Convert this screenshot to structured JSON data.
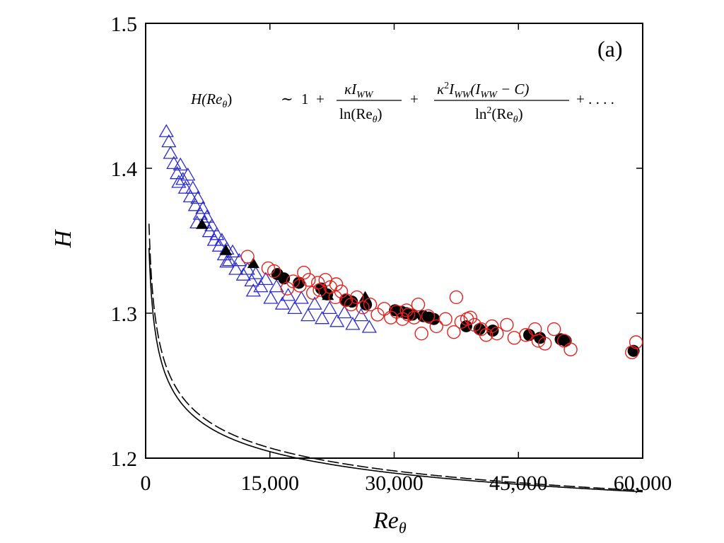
{
  "chart_data": {
    "type": "scatter",
    "panel_label": "(a)",
    "xlabel": "Re",
    "xlabel_sub": "θ",
    "ylabel": "H",
    "xlim": [
      0,
      60000
    ],
    "ylim": [
      1.2,
      1.5
    ],
    "x_ticks": [
      0,
      15000,
      30000,
      45000,
      60000
    ],
    "x_tick_labels": [
      "0",
      "15,000",
      "30,000",
      "45,000",
      "60,000"
    ],
    "y_ticks": [
      1.2,
      1.3,
      1.4,
      1.5
    ],
    "y_tick_labels": [
      "1.2",
      "1.3",
      "1.4",
      "1.5"
    ],
    "grid": false,
    "annotation": {
      "lhs": "H(Re",
      "lhs_sub": "θ",
      "lhs_close": ")",
      "sim": "∼",
      "one": "1",
      "plus": "+",
      "frac1_num": "κI",
      "frac1_num_sub": "WW",
      "frac1_den": "ln(Re",
      "frac1_den_sub": "θ",
      "frac1_den_close": ")",
      "frac2_num_a": "κ",
      "frac2_num_sup": "2",
      "frac2_num_b": "I",
      "frac2_num_sub": "WW",
      "frac2_num_c": "(I",
      "frac2_num_sub2": "WW",
      "frac2_num_d": " − C)",
      "frac2_den_a": "ln",
      "frac2_den_sup": "2",
      "frac2_den_b": "(Re",
      "frac2_den_sub": "θ",
      "frac2_den_close": ")",
      "tail": "+ . . . ."
    },
    "colors": {
      "triangles_open": "#2b2bd6",
      "circles_open": "#e8201c",
      "filled": "#000000",
      "axes": "#000000"
    },
    "series": [
      {
        "marker": "open-triangle",
        "color": "#2b2bd6",
        "points": [
          [
            2500,
            1.425
          ],
          [
            2800,
            1.418
          ],
          [
            3000,
            1.41
          ],
          [
            3400,
            1.403
          ],
          [
            3800,
            1.396
          ],
          [
            4200,
            1.402
          ],
          [
            4500,
            1.392
          ],
          [
            4800,
            1.386
          ],
          [
            5100,
            1.395
          ],
          [
            5400,
            1.38
          ],
          [
            5700,
            1.386
          ],
          [
            6000,
            1.374
          ],
          [
            6300,
            1.379
          ],
          [
            6600,
            1.368
          ],
          [
            6900,
            1.372
          ],
          [
            7100,
            1.362
          ],
          [
            7400,
            1.366
          ],
          [
            7700,
            1.356
          ],
          [
            8000,
            1.36
          ],
          [
            8300,
            1.35
          ],
          [
            8600,
            1.354
          ],
          [
            8900,
            1.346
          ],
          [
            9200,
            1.35
          ],
          [
            9500,
            1.34
          ],
          [
            9800,
            1.344
          ],
          [
            10100,
            1.336
          ],
          [
            10500,
            1.342
          ],
          [
            10900,
            1.33
          ],
          [
            11300,
            1.336
          ],
          [
            11800,
            1.326
          ],
          [
            12300,
            1.33
          ],
          [
            12800,
            1.322
          ],
          [
            13300,
            1.327
          ],
          [
            13900,
            1.318
          ],
          [
            14500,
            1.323
          ],
          [
            15100,
            1.31
          ],
          [
            15800,
            1.318
          ],
          [
            16500,
            1.306
          ],
          [
            17200,
            1.312
          ],
          [
            18000,
            1.303
          ],
          [
            18800,
            1.31
          ],
          [
            19600,
            1.298
          ],
          [
            20400,
            1.306
          ],
          [
            21300,
            1.296
          ],
          [
            22200,
            1.303
          ],
          [
            23100,
            1.294
          ],
          [
            24000,
            1.3
          ],
          [
            25000,
            1.292
          ],
          [
            26000,
            1.298
          ],
          [
            27000,
            1.29
          ],
          [
            4000,
            1.39
          ],
          [
            6200,
            1.362
          ],
          [
            9800,
            1.335
          ],
          [
            13000,
            1.315
          ]
        ]
      },
      {
        "marker": "filled-triangle",
        "color": "#000000",
        "points": [
          [
            6800,
            1.361
          ],
          [
            9700,
            1.343
          ],
          [
            13000,
            1.334
          ],
          [
            22000,
            1.312
          ],
          [
            26500,
            1.311
          ]
        ]
      },
      {
        "marker": "open-circle",
        "color": "#e8201c",
        "points": [
          [
            12300,
            1.339
          ],
          [
            14800,
            1.331
          ],
          [
            15500,
            1.329
          ],
          [
            17100,
            1.317
          ],
          [
            17800,
            1.322
          ],
          [
            18600,
            1.319
          ],
          [
            19100,
            1.328
          ],
          [
            19700,
            1.323
          ],
          [
            20200,
            1.314
          ],
          [
            21000,
            1.316
          ],
          [
            21700,
            1.323
          ],
          [
            22300,
            1.318
          ],
          [
            22900,
            1.311
          ],
          [
            23600,
            1.315
          ],
          [
            24200,
            1.309
          ],
          [
            24800,
            1.306
          ],
          [
            25500,
            1.311
          ],
          [
            26200,
            1.304
          ],
          [
            27100,
            1.306
          ],
          [
            28000,
            1.299
          ],
          [
            28800,
            1.303
          ],
          [
            29600,
            1.297
          ],
          [
            30300,
            1.301
          ],
          [
            31000,
            1.296
          ],
          [
            31700,
            1.299
          ],
          [
            32400,
            1.297
          ],
          [
            32900,
            1.306
          ],
          [
            33300,
            1.286
          ],
          [
            34100,
            1.298
          ],
          [
            35100,
            1.291
          ],
          [
            36200,
            1.296
          ],
          [
            37200,
            1.287
          ],
          [
            37500,
            1.311
          ],
          [
            38100,
            1.294
          ],
          [
            38800,
            1.296
          ],
          [
            39700,
            1.292
          ],
          [
            40500,
            1.289
          ],
          [
            41100,
            1.285
          ],
          [
            41800,
            1.291
          ],
          [
            42400,
            1.286
          ],
          [
            43600,
            1.292
          ],
          [
            44500,
            1.283
          ],
          [
            45900,
            1.285
          ],
          [
            47000,
            1.289
          ],
          [
            47400,
            1.281
          ],
          [
            48200,
            1.279
          ],
          [
            49300,
            1.289
          ],
          [
            50500,
            1.281
          ],
          [
            51300,
            1.275
          ],
          [
            58700,
            1.273
          ],
          [
            59200,
            1.28
          ],
          [
            39200,
            1.297
          ],
          [
            31500,
            1.302
          ],
          [
            23000,
            1.32
          ],
          [
            20800,
            1.321
          ]
        ]
      },
      {
        "marker": "filled-circle",
        "color": "#000000",
        "points": [
          [
            15900,
            1.327
          ],
          [
            16700,
            1.324
          ],
          [
            18500,
            1.321
          ],
          [
            21200,
            1.317
          ],
          [
            21900,
            1.313
          ],
          [
            24100,
            1.309
          ],
          [
            24900,
            1.308
          ],
          [
            26600,
            1.306
          ],
          [
            30100,
            1.302
          ],
          [
            30900,
            1.301
          ],
          [
            31500,
            1.3
          ],
          [
            32200,
            1.299
          ],
          [
            33500,
            1.298
          ],
          [
            34200,
            1.297
          ],
          [
            34800,
            1.296
          ],
          [
            38700,
            1.291
          ],
          [
            40300,
            1.289
          ],
          [
            41900,
            1.288
          ],
          [
            46300,
            1.285
          ],
          [
            47600,
            1.283
          ],
          [
            50100,
            1.282
          ],
          [
            50700,
            1.281
          ],
          [
            58900,
            1.274
          ]
        ]
      },
      {
        "marker": "line-solid",
        "color": "#000000",
        "function": "H = 1 + 1.8/ln(Re) + 1.6/ln(Re)^2"
      },
      {
        "marker": "line-dashed",
        "color": "#000000",
        "function": "H = 1 + 1.7/ln(Re) + 2.8/ln(Re)^2"
      }
    ]
  }
}
